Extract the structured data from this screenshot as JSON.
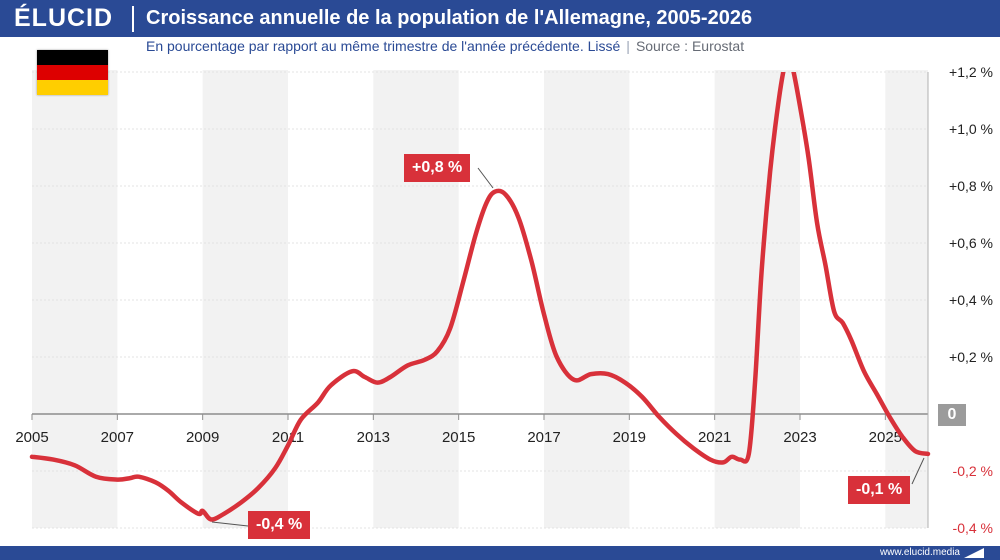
{
  "header": {
    "logo": "ÉLUCID",
    "title": "Croissance annuelle de la population de l'Allemagne, 2005-2026",
    "subtitle": "En pourcentage par rapport au même trimestre de l'année précédente. Lissé",
    "separator": "|",
    "source": "Source : Eurostat"
  },
  "footer": {
    "url": "www.elucid.media"
  },
  "flag": {
    "name": "germany-flag",
    "colors": [
      "#000000",
      "#dd0000",
      "#ffce00"
    ]
  },
  "colors": {
    "brand": "#2a4a95",
    "line": "#d8313a",
    "zero_badge": "#9b9b9b",
    "negative_tick": "#d8313a",
    "band": "#f2f2f2"
  },
  "annotations": {
    "peak": "+0,8 %",
    "trough": "-0,4 %",
    "last": "-0,1 %",
    "zero": "0"
  },
  "chart_data": {
    "type": "line",
    "title": "Croissance annuelle de la population de l'Allemagne, 2005-2026",
    "xlim": [
      2005,
      2026
    ],
    "ylim": [
      -0.4,
      1.2
    ],
    "x_ticks": [
      2005,
      2007,
      2009,
      2011,
      2013,
      2015,
      2017,
      2019,
      2021,
      2023,
      2025
    ],
    "x_tick_labels": [
      "2005",
      "2007",
      "2009",
      "2011",
      "2013",
      "2015",
      "2017",
      "2019",
      "2021",
      "2023",
      "2025"
    ],
    "y_ticks": [
      1.2,
      1.0,
      0.8,
      0.6,
      0.4,
      0.2,
      -0.2,
      -0.4
    ],
    "y_tick_labels": [
      "+1,2 %",
      "+1,0 %",
      "+0,8 %",
      "+0,6 %",
      "+0,4 %",
      "+0,2 %",
      "-0,2 %",
      "-0,4 %"
    ],
    "grid": true,
    "shaded_bands": [
      [
        2005,
        2007
      ],
      [
        2009,
        2011
      ],
      [
        2013,
        2015
      ],
      [
        2017,
        2019
      ],
      [
        2021,
        2023
      ],
      [
        2025,
        2026
      ]
    ],
    "series": [
      {
        "x": [
          2005.0,
          2005.5,
          2006.0,
          2006.5,
          2007.0,
          2007.3,
          2007.5,
          2007.9,
          2008.2,
          2008.5,
          2008.9,
          2009.0,
          2009.2,
          2009.5,
          2009.9,
          2010.3,
          2010.7,
          2011.0,
          2011.3,
          2011.7,
          2012.0,
          2012.5,
          2012.8,
          2013.1,
          2013.4,
          2013.8,
          2014.2,
          2014.5,
          2014.8,
          2015.1,
          2015.4,
          2015.65,
          2015.85,
          2016.1,
          2016.4,
          2016.7,
          2017.0,
          2017.3,
          2017.7,
          2018.1,
          2018.5,
          2018.9,
          2019.3,
          2019.7,
          2020.1,
          2020.5,
          2020.9,
          2021.2,
          2021.4,
          2021.6,
          2021.8,
          2021.95,
          2022.1,
          2022.3,
          2022.5,
          2022.65,
          2022.75,
          2022.85,
          2023.0,
          2023.2,
          2023.4,
          2023.6,
          2023.8,
          2024.0,
          2024.2,
          2024.5,
          2024.8,
          2025.1,
          2025.4,
          2025.7,
          2026.0
        ],
        "y": [
          -0.15,
          -0.16,
          -0.18,
          -0.22,
          -0.23,
          -0.225,
          -0.22,
          -0.24,
          -0.27,
          -0.31,
          -0.35,
          -0.34,
          -0.37,
          -0.35,
          -0.31,
          -0.26,
          -0.19,
          -0.11,
          -0.02,
          0.04,
          0.1,
          0.15,
          0.13,
          0.11,
          0.13,
          0.17,
          0.19,
          0.22,
          0.3,
          0.46,
          0.63,
          0.74,
          0.78,
          0.77,
          0.69,
          0.54,
          0.35,
          0.2,
          0.12,
          0.14,
          0.14,
          0.11,
          0.06,
          -0.01,
          -0.07,
          -0.12,
          -0.16,
          -0.17,
          -0.15,
          -0.16,
          -0.14,
          0.12,
          0.5,
          0.85,
          1.1,
          1.23,
          1.25,
          1.2,
          1.08,
          0.9,
          0.67,
          0.52,
          0.36,
          0.32,
          0.26,
          0.15,
          0.07,
          -0.01,
          -0.08,
          -0.13,
          -0.14
        ]
      }
    ]
  }
}
